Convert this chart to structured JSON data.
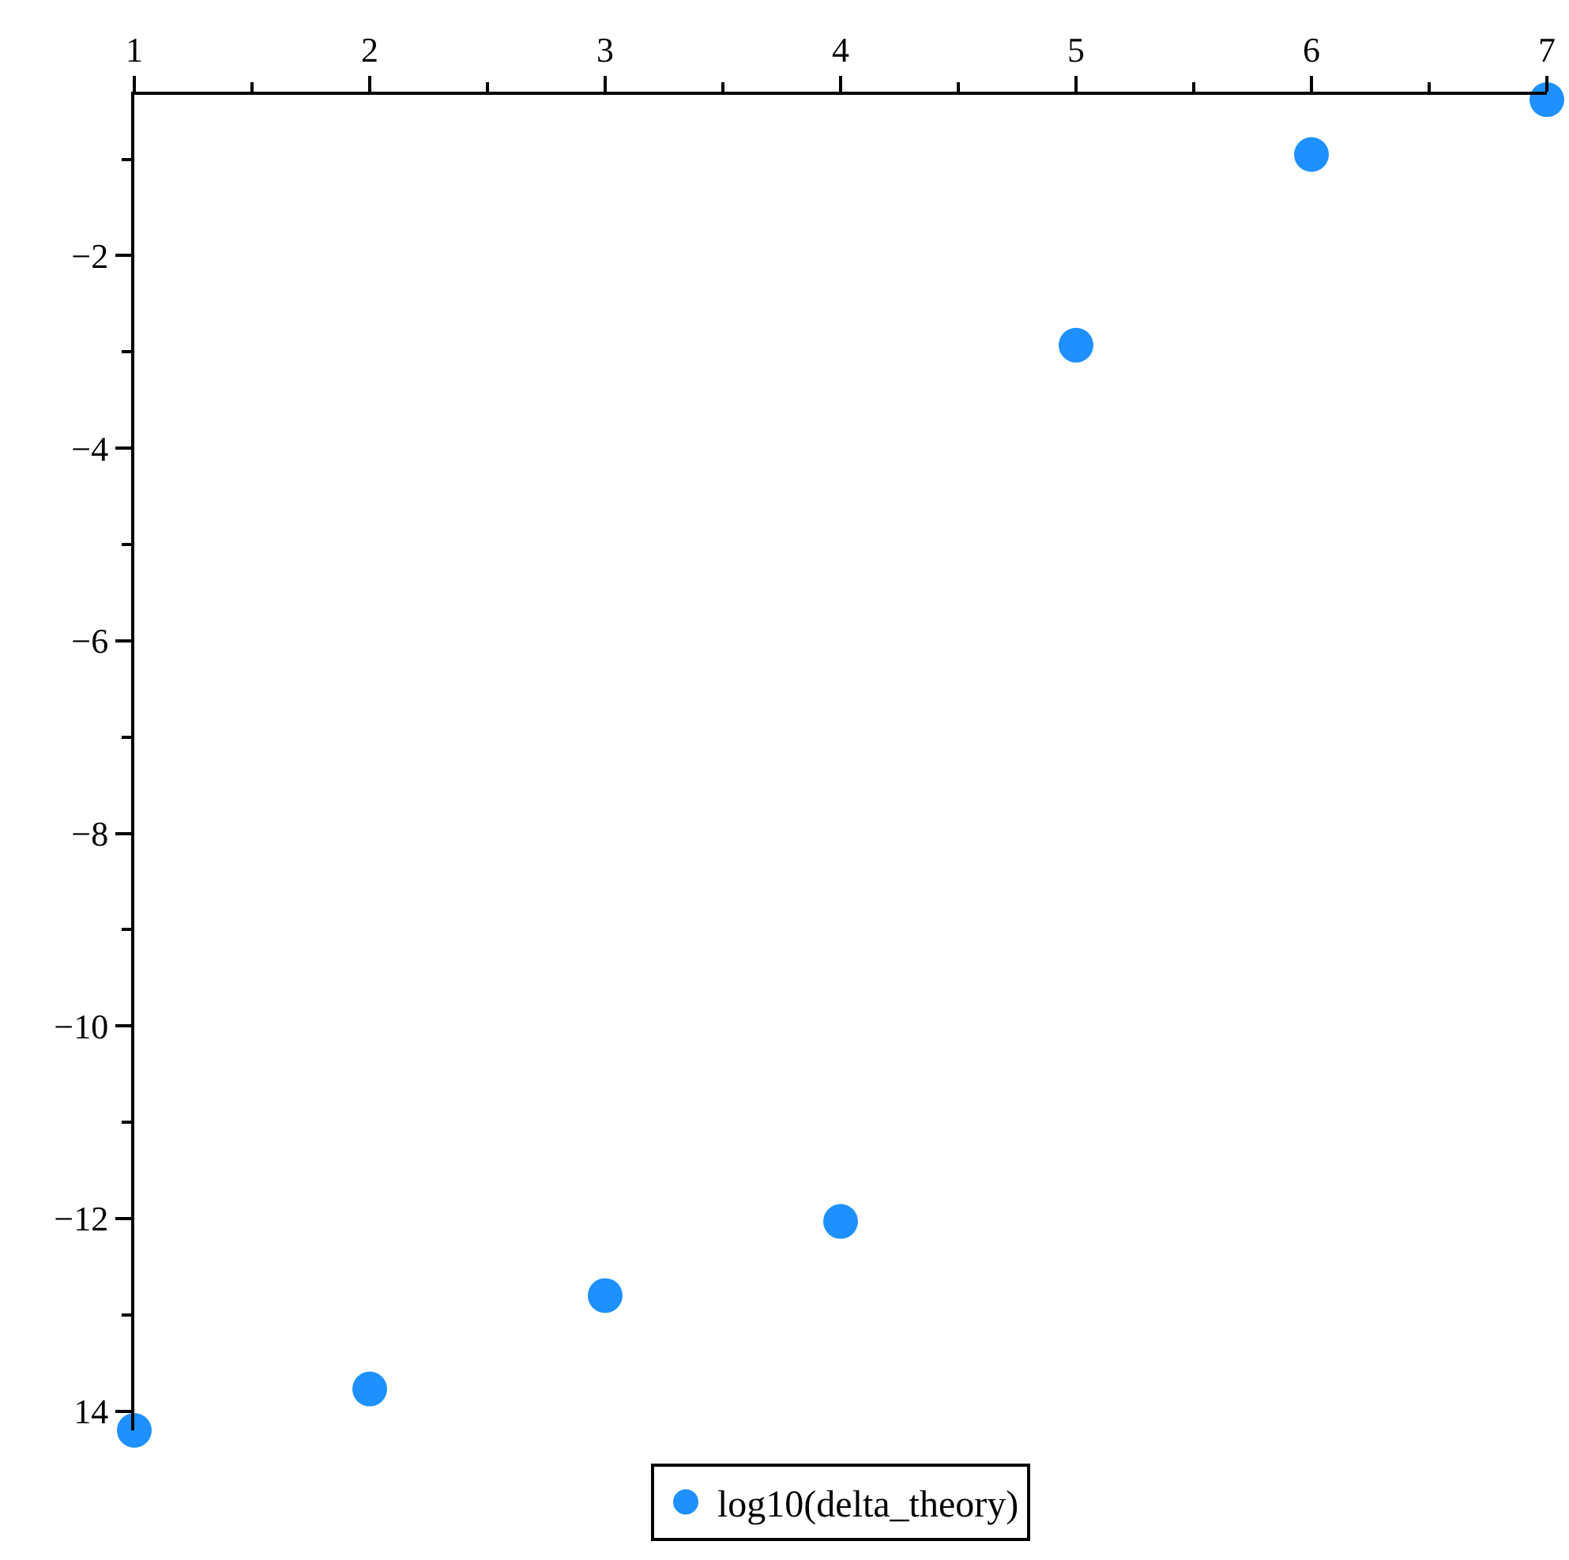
{
  "chart_data": {
    "type": "scatter",
    "x": [
      1,
      2,
      3,
      4,
      5,
      6,
      7
    ],
    "series": [
      {
        "name": "log10(delta_theory)",
        "color": "#1e90ff",
        "values": [
          -14.2,
          -13.77,
          -12.8,
          -12.03,
          -2.93,
          -0.95,
          -0.38
        ]
      }
    ],
    "xlim": [
      1,
      7
    ],
    "xticks": [
      1,
      2,
      3,
      4,
      5,
      6,
      7
    ],
    "ylim": [
      -14.2,
      -0.33
    ],
    "yticks": [
      {
        "value": -2,
        "label": "−2"
      },
      {
        "value": -4,
        "label": "−4"
      },
      {
        "value": -6,
        "label": "−6"
      },
      {
        "value": -8,
        "label": "−8"
      },
      {
        "value": -10,
        "label": "−10"
      },
      {
        "value": -12,
        "label": "−12"
      },
      {
        "value": -14,
        "label": "14"
      }
    ],
    "marker": "circle",
    "grid": false,
    "legend": "bottom"
  }
}
